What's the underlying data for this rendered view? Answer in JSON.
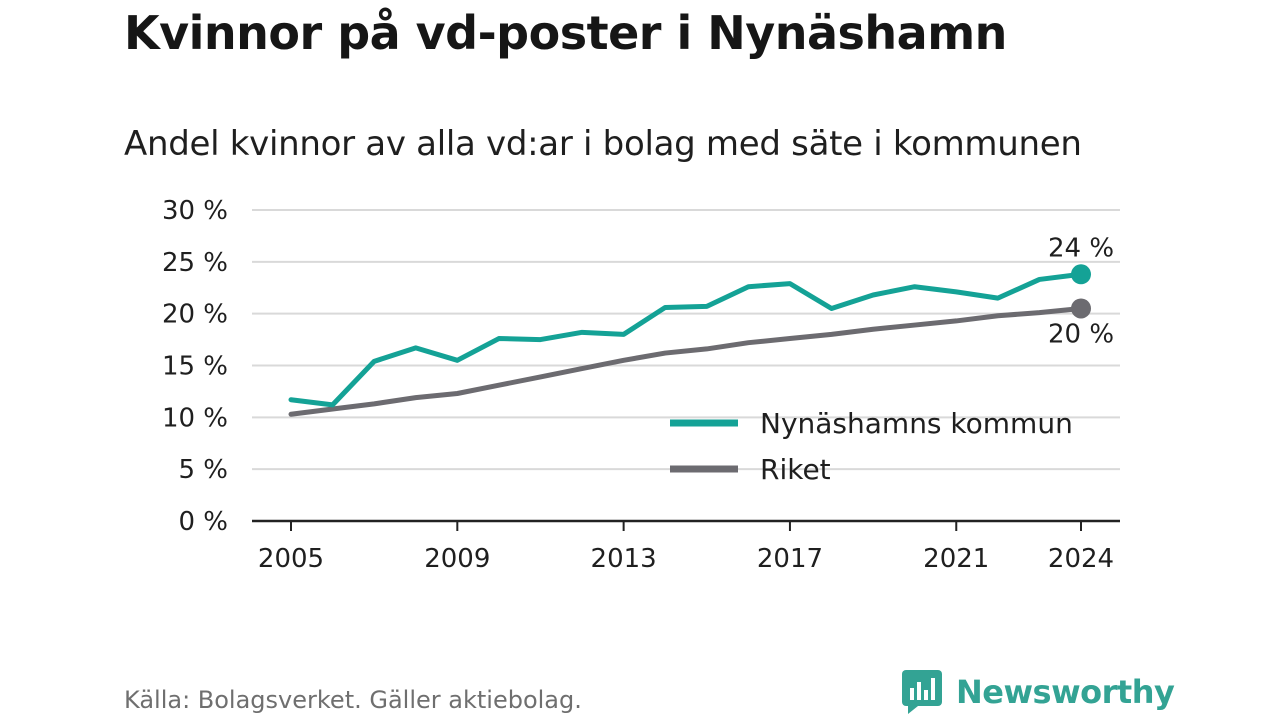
{
  "header": {
    "title": "Kvinnor på vd-poster i Nynäshamn",
    "subtitle": "Andel kvinnor av alla vd:ar i bolag med säte i kommunen"
  },
  "footer": {
    "source": "Källa: Bolagsverket. Gäller aktiebolag.",
    "brand": "Newsworthy",
    "brand_icon": "bar-chart-icon"
  },
  "colors": {
    "series1": "#14a296",
    "series2": "#6c6b70",
    "grid": "#d9d9d9",
    "axis": "#222222",
    "brand": "#33a394"
  },
  "chart_data": {
    "type": "line",
    "x": [
      2005,
      2006,
      2007,
      2008,
      2009,
      2010,
      2011,
      2012,
      2013,
      2014,
      2015,
      2016,
      2017,
      2018,
      2019,
      2020,
      2021,
      2022,
      2023,
      2024
    ],
    "series": [
      {
        "name": "Nynäshamns kommun",
        "values": [
          11.7,
          11.2,
          15.4,
          16.7,
          15.5,
          17.6,
          17.5,
          18.2,
          18.0,
          20.6,
          20.7,
          22.6,
          22.9,
          20.5,
          21.8,
          22.6,
          22.1,
          21.5,
          23.3,
          23.8
        ],
        "end_label": "24 %"
      },
      {
        "name": "Riket",
        "values": [
          10.3,
          10.8,
          11.3,
          11.9,
          12.3,
          13.1,
          13.9,
          14.7,
          15.5,
          16.2,
          16.6,
          17.2,
          17.6,
          18.0,
          18.5,
          18.9,
          19.3,
          19.8,
          20.1,
          20.5
        ],
        "end_label": "20 %"
      }
    ],
    "x_ticks": [
      "2005",
      "2009",
      "2013",
      "2017",
      "2021",
      "2024"
    ],
    "y_ticks": [
      "0 %",
      "5 %",
      "10 %",
      "15 %",
      "20 %",
      "25 %",
      "30 %"
    ],
    "ylim": [
      0,
      30
    ],
    "xlim": [
      2005,
      2024
    ],
    "grid": true,
    "legend": "inside bottom-right"
  }
}
